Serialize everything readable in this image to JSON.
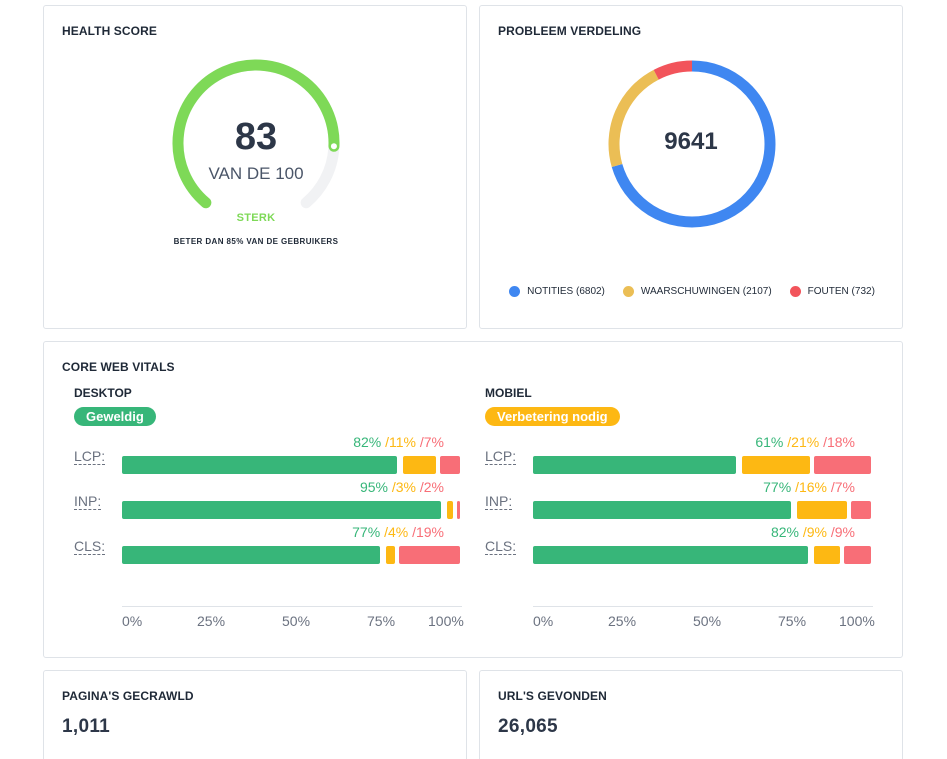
{
  "health": {
    "title": "HEALTH SCORE",
    "score": "83",
    "score_value": 83,
    "subtitle": "VAN DE 100",
    "rating": "STERK",
    "caption": "BETER DAN 85% VAN DE GEBRUIKERS",
    "color": "#7ed957",
    "track_color": "#f1f2f4"
  },
  "issues": {
    "title": "PROBLEEM VERDELING",
    "total": "9641",
    "segments": [
      {
        "label": "NOTITIES (6802)",
        "value": 6802,
        "color": "#3f87f1"
      },
      {
        "label": "WAARSCHUWINGEN (2107)",
        "value": 2107,
        "color": "#ebbe55"
      },
      {
        "label": "FOUTEN (732)",
        "value": 732,
        "color": "#f2545b"
      }
    ]
  },
  "cwv": {
    "title": "CORE WEB VITALS",
    "colors": {
      "good": "#37b679",
      "avg": "#fdb813",
      "poor": "#f86e77"
    },
    "axis_ticks": [
      "0%",
      "25%",
      "50%",
      "75%",
      "100%"
    ],
    "desktop": {
      "title": "DESKTOP",
      "status": "Geweldig",
      "status_color": "#37b679",
      "metrics": [
        {
          "name": "LCP:",
          "good": 82,
          "avg": 11,
          "poor": 7,
          "good_label": "82%",
          "avg_label": "/11%",
          "poor_label": "/7%"
        },
        {
          "name": "INP:",
          "good": 95,
          "avg": 3,
          "poor": 2,
          "good_label": "95%",
          "avg_label": "/3%",
          "poor_label": "/2%"
        },
        {
          "name": "CLS:",
          "good": 77,
          "avg": 4,
          "poor": 19,
          "good_label": "77%",
          "avg_label": "/4%",
          "poor_label": "/19%"
        }
      ]
    },
    "mobile": {
      "title": "MOBIEL",
      "status": "Verbetering nodig",
      "status_color": "#fdb813",
      "metrics": [
        {
          "name": "LCP:",
          "good": 61,
          "avg": 21,
          "poor": 18,
          "good_label": "61%",
          "avg_label": "/21%",
          "poor_label": "/18%"
        },
        {
          "name": "INP:",
          "good": 77,
          "avg": 16,
          "poor": 7,
          "good_label": "77%",
          "avg_label": "/16%",
          "poor_label": "/7%"
        },
        {
          "name": "CLS:",
          "good": 82,
          "avg": 9,
          "poor": 9,
          "good_label": "82%",
          "avg_label": "/9%",
          "poor_label": "/9%"
        }
      ]
    }
  },
  "pages_crawled": {
    "title": "PAGINA'S GECRAWLD",
    "value": "1,011"
  },
  "urls_found": {
    "title": "URL'S GEVONDEN",
    "value": "26,065"
  }
}
